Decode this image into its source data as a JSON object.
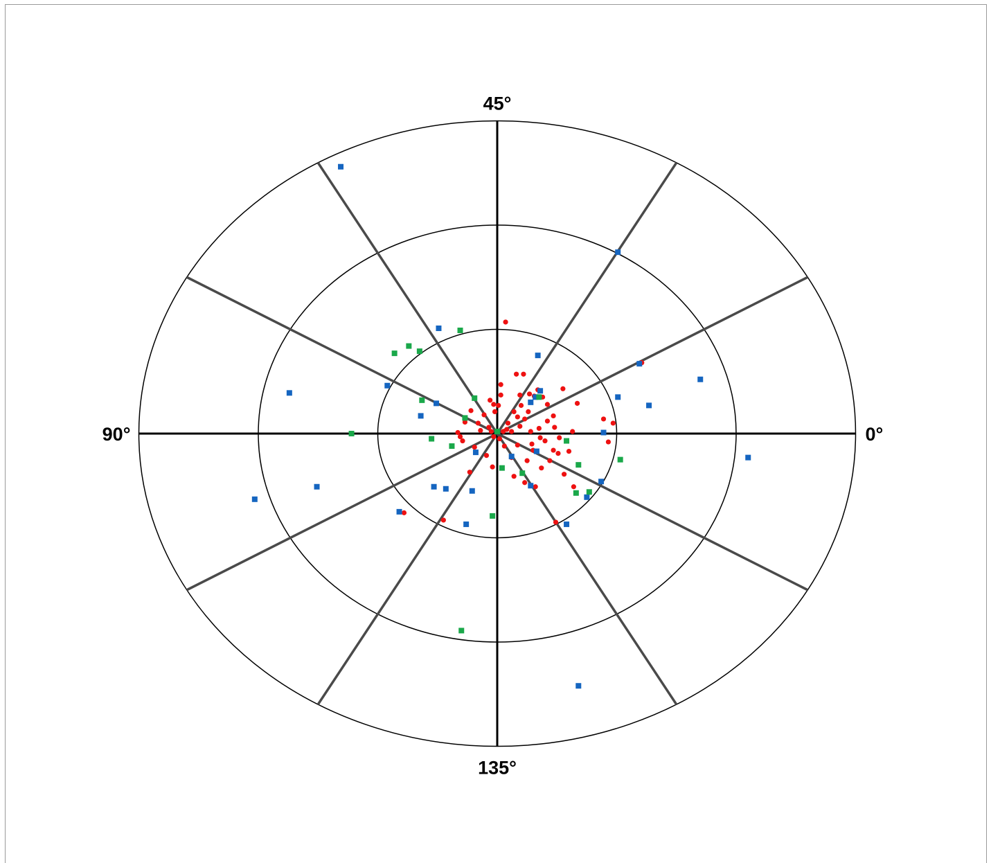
{
  "chart_data": {
    "type": "scatter",
    "coordinate_system": "polar",
    "title": "",
    "angle_labels": [
      {
        "angle_deg": 0,
        "text": "0°"
      },
      {
        "angle_deg": 90,
        "text": "45°"
      },
      {
        "angle_deg": 180,
        "text": "90°"
      },
      {
        "angle_deg": 270,
        "text": "135°"
      }
    ],
    "spoke_angles_deg": [
      0,
      30,
      60,
      90,
      120,
      150,
      180,
      210,
      240,
      270,
      300,
      330
    ],
    "ring_levels": [
      1,
      2,
      3
    ],
    "rlim": [
      0,
      3
    ],
    "grid": true,
    "legend": "none",
    "colors": {
      "red_series": "#ee1111",
      "blue_series": "#1565c0",
      "green_series": "#1aa84a",
      "primary_axes": "#000000",
      "secondary_spokes": "#4a4a4a",
      "rings": "#000000"
    },
    "series": [
      {
        "marker": "circle",
        "color": "#ee1111",
        "points": [
          [
            0.07,
            1.07
          ],
          [
            0.03,
            0.47
          ],
          [
            0.01,
            0.27
          ],
          [
            0.16,
            0.57
          ],
          [
            0.23,
            0.14
          ],
          [
            0.22,
            0.57
          ],
          [
            0.26,
            0.21
          ],
          [
            0.31,
            0.36
          ],
          [
            0.34,
            0.42
          ],
          [
            0.47,
            0.17
          ],
          [
            0.55,
            0.43
          ],
          [
            0.63,
            0.02
          ],
          [
            0.89,
            0.14
          ],
          [
            0.97,
            0.1
          ],
          [
            0.08,
            0.04
          ],
          [
            0.12,
            0.02
          ],
          [
            0.19,
            0.07
          ],
          [
            0.06,
            -0.12
          ],
          [
            0.17,
            -0.11
          ],
          [
            0.3,
            -0.16
          ],
          [
            0.4,
            -0.07
          ],
          [
            0.47,
            -0.16
          ],
          [
            0.25,
            -0.26
          ],
          [
            0.12,
            -0.23
          ],
          [
            0.37,
            -0.33
          ],
          [
            0.14,
            -0.41
          ],
          [
            0.23,
            -0.47
          ],
          [
            0.32,
            -0.51
          ],
          [
            0.56,
            -0.39
          ],
          [
            0.64,
            -0.51
          ],
          [
            0.49,
            -0.85
          ],
          [
            -0.03,
            0.28
          ],
          [
            -0.06,
            0.32
          ],
          [
            -0.11,
            0.18
          ],
          [
            -0.16,
            0.1
          ],
          [
            -0.22,
            0.22
          ],
          [
            -0.27,
            0.11
          ],
          [
            -0.33,
            0.01
          ],
          [
            -0.29,
            -0.07
          ],
          [
            -0.19,
            -0.13
          ],
          [
            -0.09,
            -0.21
          ],
          [
            -0.04,
            -0.32
          ],
          [
            -0.23,
            -0.37
          ],
          [
            -0.45,
            -0.83
          ],
          [
            -0.78,
            -0.76
          ],
          [
            0.05,
            0.02
          ],
          [
            -0.05,
            0.02
          ],
          [
            0.02,
            -0.05
          ],
          [
            -0.03,
            -0.03
          ],
          [
            0.14,
            0.21
          ],
          [
            0.17,
            0.16
          ],
          [
            0.2,
            0.27
          ],
          [
            0.19,
            0.37
          ],
          [
            0.27,
            0.38
          ],
          [
            0.38,
            0.35
          ],
          [
            0.42,
            0.12
          ],
          [
            0.35,
            0.05
          ],
          [
            0.28,
            0.02
          ],
          [
            0.48,
            0.06
          ],
          [
            0.52,
            -0.04
          ],
          [
            0.36,
            -0.04
          ],
          [
            0.44,
            -0.26
          ],
          [
            0.51,
            -0.19
          ],
          [
            0.6,
            -0.17
          ],
          [
            0.29,
            -0.1
          ],
          [
            0.09,
            0.1
          ],
          [
            0.03,
            0.37
          ],
          [
            -0.02,
            0.21
          ],
          [
            -0.14,
            0.03
          ],
          [
            -0.07,
            0.06
          ],
          [
            -0.31,
            -0.03
          ],
          [
            0.42,
            0.28
          ],
          [
            0.67,
            0.29
          ],
          [
            1.21,
            0.68
          ],
          [
            0.93,
            -0.08
          ]
        ]
      },
      {
        "marker": "square",
        "color": "#1565c0",
        "points": [
          [
            -1.31,
            2.56
          ],
          [
            1.01,
            1.74
          ],
          [
            -0.49,
            1.01
          ],
          [
            0.34,
            0.75
          ],
          [
            1.19,
            0.67
          ],
          [
            1.7,
            0.52
          ],
          [
            -0.92,
            0.46
          ],
          [
            -1.74,
            0.39
          ],
          [
            0.36,
            0.41
          ],
          [
            0.32,
            0.35
          ],
          [
            0.28,
            0.3
          ],
          [
            -0.51,
            0.29
          ],
          [
            -0.64,
            0.17
          ],
          [
            1.01,
            0.35
          ],
          [
            1.27,
            0.27
          ],
          [
            0.89,
            0.01
          ],
          [
            2.1,
            -0.23
          ],
          [
            -0.18,
            -0.18
          ],
          [
            -0.53,
            -0.51
          ],
          [
            -0.43,
            -0.53
          ],
          [
            -0.21,
            -0.55
          ],
          [
            0.28,
            -0.5
          ],
          [
            0.12,
            -0.22
          ],
          [
            0.33,
            -0.17
          ],
          [
            0.75,
            -0.61
          ],
          [
            0.87,
            -0.46
          ],
          [
            -0.26,
            -0.87
          ],
          [
            -0.82,
            -0.75
          ],
          [
            -1.51,
            -0.51
          ],
          [
            -2.03,
            -0.63
          ],
          [
            0.58,
            -0.87
          ],
          [
            0.68,
            -2.42
          ]
        ]
      },
      {
        "marker": "square",
        "color": "#1aa84a",
        "points": [
          [
            -0.31,
            0.99
          ],
          [
            -0.74,
            0.84
          ],
          [
            -0.86,
            0.77
          ],
          [
            -0.65,
            0.79
          ],
          [
            -0.63,
            0.32
          ],
          [
            -0.19,
            0.34
          ],
          [
            0.35,
            0.35
          ],
          [
            -0.27,
            0.15
          ],
          [
            -0.55,
            -0.05
          ],
          [
            -0.38,
            -0.12
          ],
          [
            0.58,
            -0.07
          ],
          [
            0.68,
            -0.3
          ],
          [
            1.03,
            -0.25
          ],
          [
            0.04,
            -0.33
          ],
          [
            0.21,
            -0.38
          ],
          [
            0.77,
            -0.56
          ],
          [
            0.66,
            -0.57
          ],
          [
            -0.04,
            -0.79
          ],
          [
            -1.22,
            0.0
          ],
          [
            -0.3,
            -1.89
          ],
          [
            0.0,
            0.02
          ]
        ]
      }
    ]
  }
}
